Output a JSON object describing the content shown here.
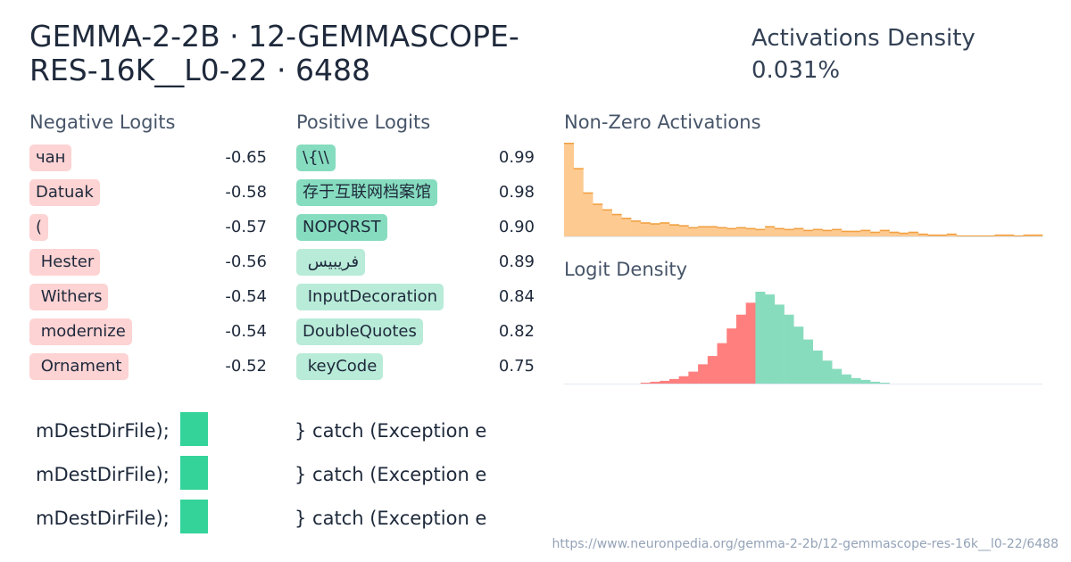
{
  "header": {
    "title": "GEMMA-2-2B · 12-GEMMASCOPE-RES-16K__L0-22 · 6488",
    "density_label": "Activations Density",
    "density_value": "0.031%"
  },
  "negative_logits": {
    "heading": "Negative Logits",
    "color": "#fdd3d3",
    "items": [
      {
        "token": "чан",
        "value": "-0.65"
      },
      {
        "token": "Datuak",
        "value": "-0.58"
      },
      {
        "token": "(",
        "value": "-0.57"
      },
      {
        "token": " Hester",
        "value": "-0.56"
      },
      {
        "token": " Withers",
        "value": "-0.54"
      },
      {
        "token": " modernize",
        "value": "-0.54"
      },
      {
        "token": " Ornament",
        "value": "-0.52"
      }
    ]
  },
  "positive_logits": {
    "heading": "Positive Logits",
    "items": [
      {
        "token": "\\{\\\\",
        "value": "0.99",
        "color": "#86dcbf"
      },
      {
        "token": "存于互联网档案馆",
        "value": "0.98",
        "color": "#86dcbf"
      },
      {
        "token": "NOPQRST",
        "value": "0.90",
        "color": "#86dcbf"
      },
      {
        "token": " فريبيس",
        "value": "0.89",
        "color": "#b8ebd8"
      },
      {
        "token": " InputDecoration",
        "value": "0.84",
        "color": "#b8ebd8"
      },
      {
        "token": "DoubleQuotes",
        "value": "0.82",
        "color": "#b8ebd8"
      },
      {
        "token": " keyCode",
        "value": "0.75",
        "color": "#b8ebd8"
      }
    ]
  },
  "activations_histogram": {
    "title": "Non-Zero Activations",
    "color": "#fdca92",
    "edge_color": "#f0a040",
    "values": [
      100,
      73,
      47,
      35,
      29,
      24,
      20,
      17,
      15,
      14,
      15,
      13,
      12,
      10,
      11,
      11,
      10,
      9,
      10,
      9,
      8,
      11,
      9,
      8,
      9,
      7,
      8,
      7,
      8,
      6,
      6,
      7,
      5,
      7,
      5,
      4,
      5,
      3,
      2,
      2,
      3,
      1,
      1,
      1,
      1,
      2,
      2,
      1,
      2,
      2
    ]
  },
  "logit_histogram": {
    "title": "Logit Density",
    "negative_color": "#ff7f7f",
    "positive_color": "#88dcbe",
    "negative": [
      0,
      0,
      0,
      0,
      0,
      0,
      0,
      0,
      1,
      2,
      3,
      5,
      8,
      13,
      21,
      30,
      44,
      60,
      75,
      88
    ],
    "positive": [
      100,
      97,
      86,
      75,
      62,
      48,
      36,
      25,
      16,
      10,
      6,
      4,
      2,
      1,
      0,
      0,
      0,
      0,
      0,
      0,
      0,
      0,
      0,
      0,
      0,
      0,
      0,
      0,
      0,
      0
    ]
  },
  "examples": {
    "token_color": "#34d399",
    "rows": [
      {
        "before": "mDestDirFile);",
        "after": "} catch (Exception e"
      },
      {
        "before": "mDestDirFile);",
        "after": "} catch (Exception e"
      },
      {
        "before": "mDestDirFile);",
        "after": "} catch (Exception e"
      }
    ]
  },
  "footer": {
    "url": "https://www.neuronpedia.org/gemma-2-2b/12-gemmascope-res-16k__l0-22/6488"
  }
}
